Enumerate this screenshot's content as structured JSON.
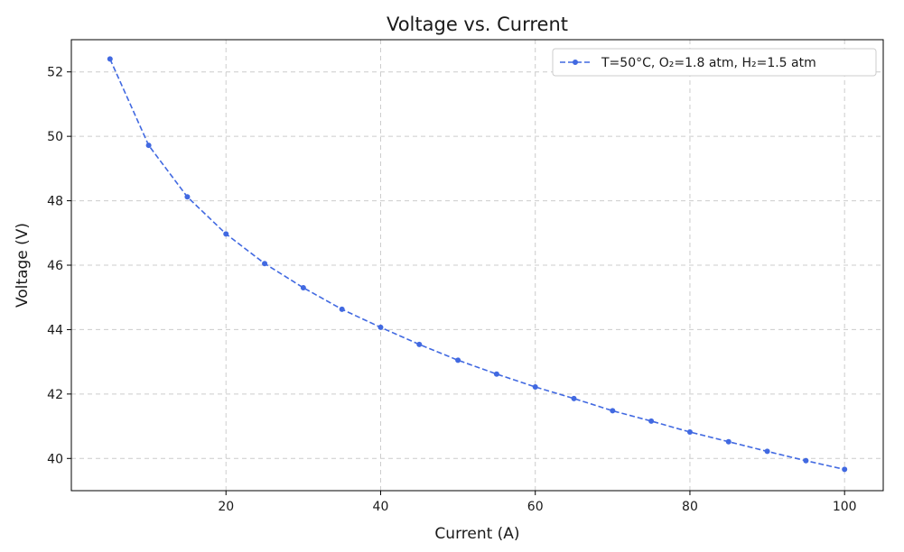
{
  "chart_data": {
    "type": "line",
    "title": "Voltage vs. Current",
    "xlabel": "Current (A)",
    "ylabel": "Voltage (V)",
    "xlim": [
      0,
      105
    ],
    "ylim": [
      39,
      53
    ],
    "xticks": [
      20,
      40,
      60,
      80,
      100
    ],
    "yticks": [
      40,
      42,
      44,
      46,
      48,
      50,
      52
    ],
    "grid": true,
    "legend_position": "top-right",
    "colors": {
      "line": "#4169e1",
      "grid": "#cccccc",
      "axis": "#000000"
    },
    "series": [
      {
        "name": "T=50°C, O₂=1.8 atm, H₂=1.5 atm",
        "line_style": "dashed",
        "marker": "circle",
        "x": [
          5,
          10,
          15,
          20,
          25,
          30,
          35,
          40,
          45,
          50,
          55,
          60,
          65,
          70,
          75,
          80,
          85,
          90,
          95,
          100
        ],
        "y": [
          52.4,
          49.72,
          48.12,
          46.97,
          46.05,
          45.3,
          44.63,
          44.07,
          43.54,
          43.05,
          42.62,
          42.22,
          41.86,
          41.48,
          41.16,
          40.82,
          40.52,
          40.22,
          39.93,
          39.66
        ]
      }
    ]
  }
}
